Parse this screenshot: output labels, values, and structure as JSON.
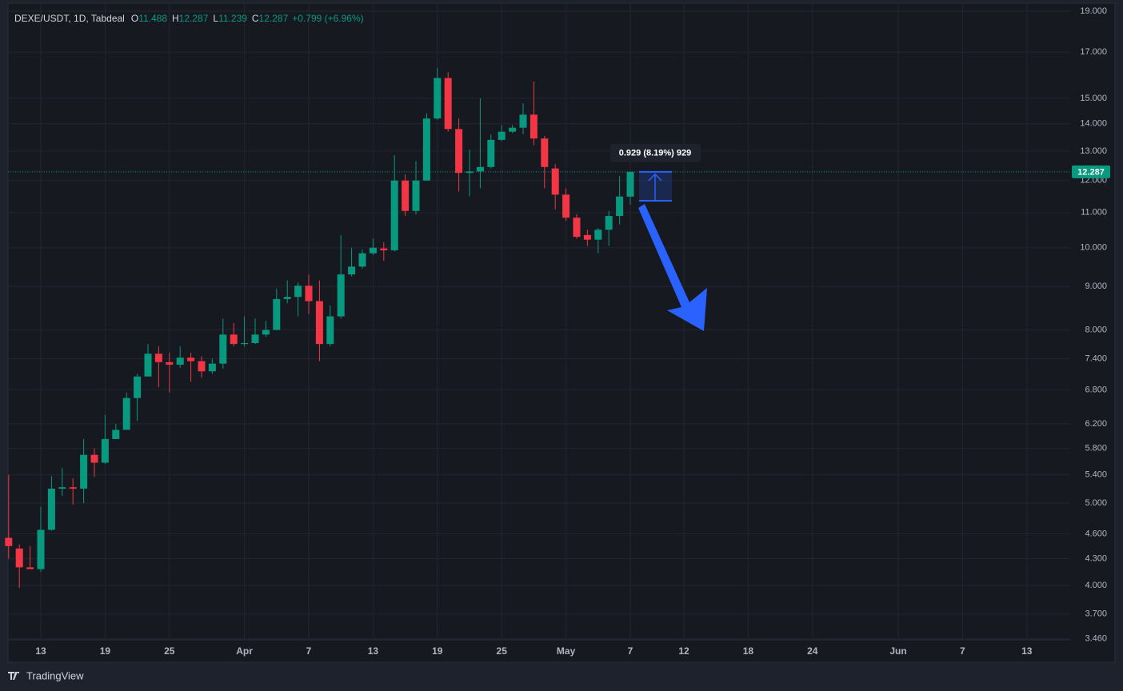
{
  "chart_data": {
    "type": "candlestick",
    "title": "DEXE/USDT, 1D, Tabdeal",
    "ohlc_header": [
      {
        "label": "O",
        "value": "11.488"
      },
      {
        "label": "H",
        "value": "12.287"
      },
      {
        "label": "L",
        "value": "11.239"
      },
      {
        "label": "C",
        "value": "12.287"
      }
    ],
    "change": "+0.799 (+6.96%)",
    "x": [
      "03-10",
      "03-11",
      "03-12",
      "03-13",
      "03-14",
      "03-15",
      "03-16",
      "03-17",
      "03-18",
      "03-19",
      "03-20",
      "03-21",
      "03-22",
      "03-23",
      "03-24",
      "03-25",
      "03-26",
      "03-27",
      "03-28",
      "03-29",
      "03-30",
      "03-31",
      "04-01",
      "04-02",
      "04-03",
      "04-04",
      "04-05",
      "04-06",
      "04-07",
      "04-08",
      "04-09",
      "04-10",
      "04-11",
      "04-12",
      "04-13",
      "04-14",
      "04-15",
      "04-16",
      "04-17",
      "04-18",
      "04-19",
      "04-20",
      "04-21",
      "04-22",
      "04-23",
      "04-24",
      "04-25",
      "04-26",
      "04-27",
      "04-28",
      "04-29",
      "04-30",
      "05-01",
      "05-02",
      "05-03",
      "05-04",
      "05-05",
      "05-06",
      "05-07"
    ],
    "open": [
      4.55,
      4.42,
      4.2,
      4.18,
      4.65,
      5.2,
      5.22,
      5.2,
      5.7,
      5.58,
      5.95,
      6.1,
      6.65,
      7.05,
      7.5,
      7.33,
      7.28,
      7.42,
      7.35,
      7.15,
      7.3,
      7.9,
      7.7,
      7.72,
      7.9,
      8.0,
      8.7,
      8.75,
      9.02,
      8.65,
      7.7,
      8.3,
      9.3,
      9.5,
      9.85,
      9.98,
      9.93,
      12.0,
      11.05,
      12.0,
      14.2,
      15.85,
      13.8,
      12.25,
      12.3,
      12.45,
      13.4,
      13.7,
      13.85,
      14.35,
      13.45,
      12.4,
      11.55,
      10.85,
      10.35,
      10.22,
      10.5,
      10.9,
      11.488
    ],
    "high": [
      5.4,
      4.47,
      4.45,
      4.95,
      5.38,
      5.5,
      5.35,
      5.95,
      5.8,
      6.35,
      6.2,
      6.75,
      7.1,
      7.7,
      7.65,
      7.52,
      7.65,
      7.52,
      7.45,
      7.4,
      8.25,
      8.15,
      8.3,
      8.25,
      8.2,
      8.95,
      9.15,
      9.1,
      9.3,
      9.15,
      8.55,
      10.35,
      10.0,
      9.95,
      10.25,
      10.15,
      12.85,
      12.2,
      12.65,
      14.4,
      16.3,
      16.1,
      14.2,
      13.05,
      15.0,
      13.6,
      13.95,
      13.95,
      14.8,
      15.7,
      13.55,
      12.55,
      11.75,
      10.95,
      10.5,
      10.55,
      11.05,
      12.15,
      12.287
    ],
    "low": [
      4.3,
      3.97,
      4.18,
      4.15,
      4.64,
      5.1,
      4.98,
      5.0,
      5.37,
      5.56,
      5.95,
      6.1,
      6.25,
      7.05,
      6.85,
      6.75,
      7.22,
      6.95,
      7.03,
      7.1,
      7.2,
      7.65,
      7.65,
      7.7,
      7.85,
      8.0,
      8.6,
      8.3,
      8.35,
      7.35,
      7.65,
      8.25,
      9.25,
      9.45,
      9.8,
      9.65,
      9.9,
      10.9,
      10.95,
      12.0,
      14.15,
      13.7,
      11.65,
      11.5,
      11.75,
      12.4,
      13.35,
      13.65,
      13.6,
      13.2,
      11.75,
      11.1,
      10.75,
      10.25,
      10.05,
      9.85,
      10.05,
      10.65,
      11.239
    ],
    "close": [
      4.45,
      4.2,
      4.18,
      4.65,
      5.2,
      5.22,
      5.2,
      5.7,
      5.58,
      5.95,
      6.1,
      6.65,
      7.05,
      7.5,
      7.33,
      7.28,
      7.42,
      7.35,
      7.15,
      7.3,
      7.9,
      7.7,
      7.72,
      7.9,
      8.0,
      8.7,
      8.75,
      9.02,
      8.65,
      7.7,
      8.3,
      9.3,
      9.5,
      9.85,
      10.0,
      9.93,
      12.0,
      11.05,
      12.0,
      14.2,
      15.85,
      13.8,
      12.25,
      12.3,
      12.45,
      13.4,
      13.7,
      13.85,
      14.35,
      13.45,
      12.45,
      11.55,
      10.85,
      10.3,
      10.22,
      10.5,
      10.9,
      11.49,
      12.287
    ],
    "up_color": "#089981",
    "down_color": "#f23645",
    "log_scale": true,
    "grid": true,
    "ylim": [
      3.45,
      19.25
    ],
    "yticks": [
      {
        "value": 3.46,
        "label": "3.460"
      },
      {
        "value": 3.7,
        "label": "3.700"
      },
      {
        "value": 4,
        "label": "4.000"
      },
      {
        "value": 4.3,
        "label": "4.300"
      },
      {
        "value": 4.6,
        "label": "4.600"
      },
      {
        "value": 5,
        "label": "5.000"
      },
      {
        "value": 5.4,
        "label": "5.400"
      },
      {
        "value": 5.8,
        "label": "5.800"
      },
      {
        "value": 6.2,
        "label": "6.200"
      },
      {
        "value": 6.8,
        "label": "6.800"
      },
      {
        "value": 7.4,
        "label": "7.400"
      },
      {
        "value": 8,
        "label": "8.000"
      },
      {
        "value": 9,
        "label": "9.000"
      },
      {
        "value": 10,
        "label": "10.000"
      },
      {
        "value": 11,
        "label": "11.000"
      },
      {
        "value": 12,
        "label": "12.000"
      },
      {
        "value": 13,
        "label": "13.000"
      },
      {
        "value": 14,
        "label": "14.000"
      },
      {
        "value": 15,
        "label": "15.000"
      },
      {
        "value": 17,
        "label": "17.000"
      },
      {
        "value": 19,
        "label": "19.000"
      }
    ],
    "xticks": [
      {
        "value": "03-13",
        "label": "13"
      },
      {
        "value": "03-19",
        "label": "19"
      },
      {
        "value": "03-25",
        "label": "25"
      },
      {
        "value": "04-01",
        "label": "Apr"
      },
      {
        "value": "04-07",
        "label": "7"
      },
      {
        "value": "04-13",
        "label": "13"
      },
      {
        "value": "04-19",
        "label": "19"
      },
      {
        "value": "04-25",
        "label": "25"
      },
      {
        "value": "05-01",
        "label": "May"
      },
      {
        "value": "05-07",
        "label": "7"
      },
      {
        "value": "05-12",
        "label": "12"
      },
      {
        "value": "05-18",
        "label": "18"
      },
      {
        "value": "05-24",
        "label": "24"
      },
      {
        "value": "06-01",
        "label": "Jun"
      },
      {
        "value": "06-07",
        "label": "7"
      },
      {
        "value": "06-13",
        "label": "13"
      }
    ],
    "last_price": {
      "value": 12.287,
      "label": "12.287"
    },
    "measure": {
      "label": "0.929 (8.19%) 929",
      "low": 11.358,
      "high": 12.287
    },
    "footer": "TradingView"
  }
}
